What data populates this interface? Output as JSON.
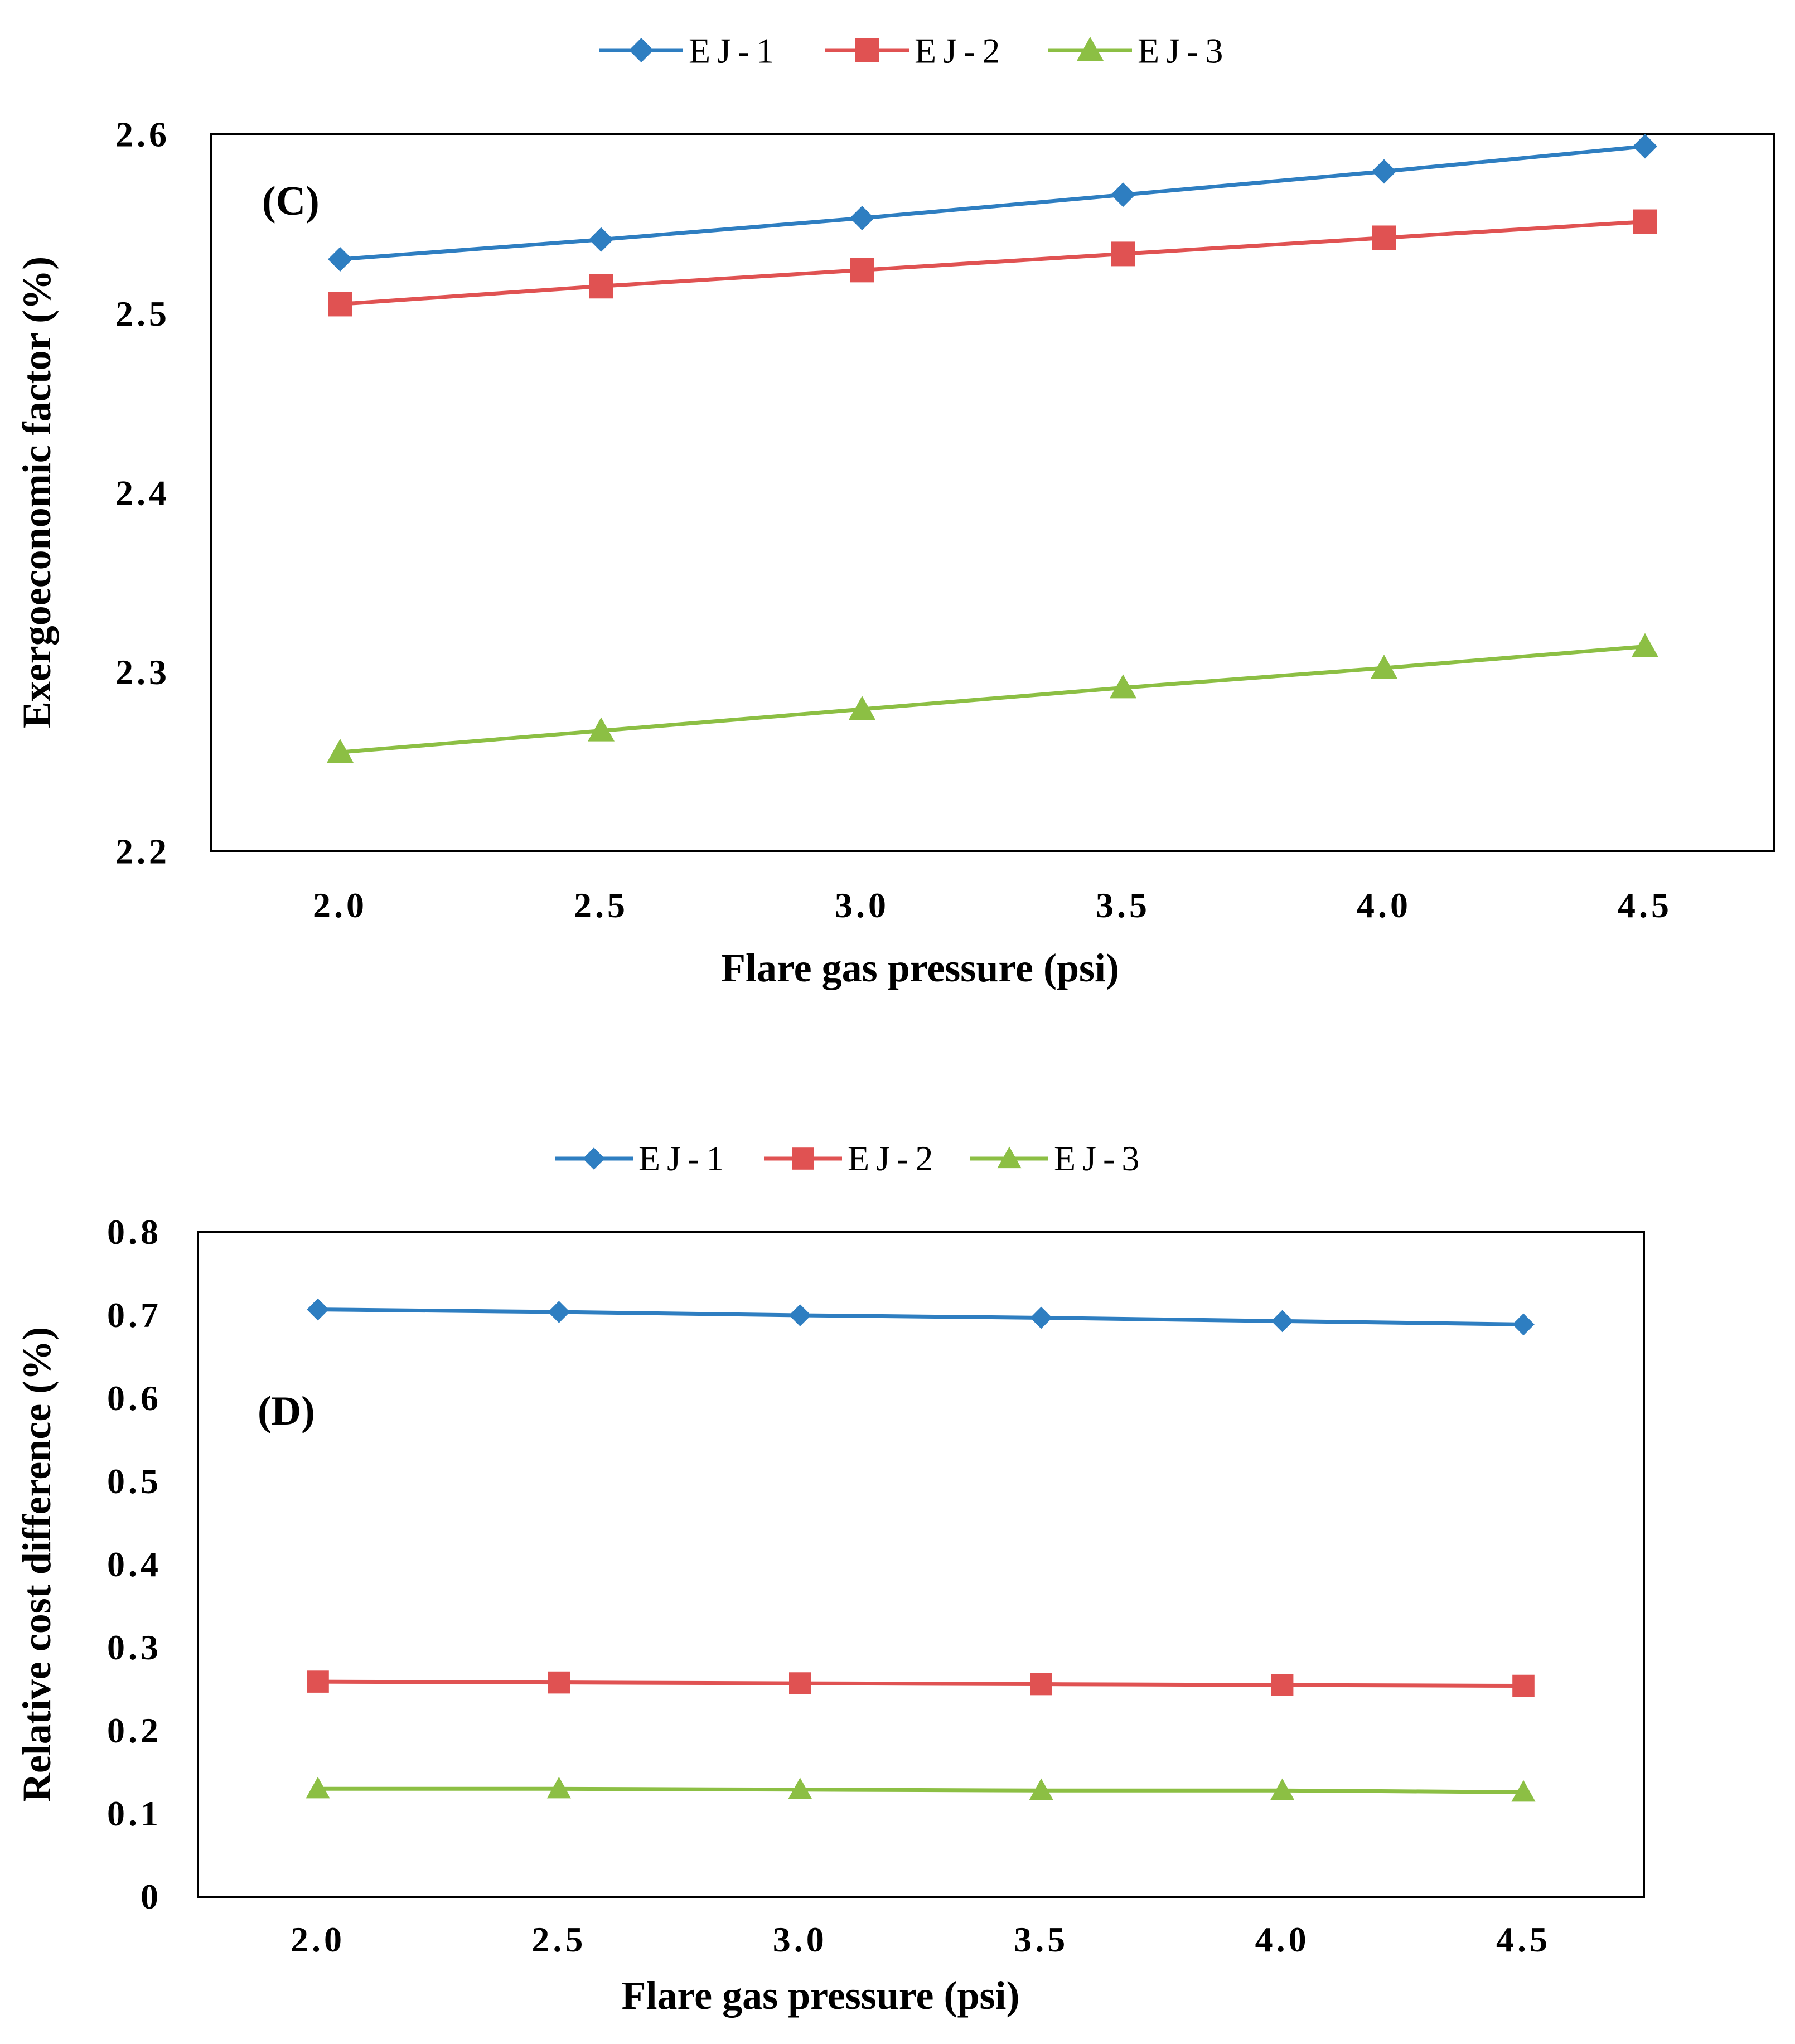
{
  "chart_data": [
    {
      "type": "line",
      "panel_label": "(C)",
      "xlabel": "Flare gas pressure (psi)",
      "ylabel": "Exergoeconomic factor (%)",
      "x": [
        2.0,
        2.5,
        3.0,
        3.5,
        4.0,
        4.5
      ],
      "x_tick_labels": [
        "2.0",
        "2.5",
        "3.0",
        "3.5",
        "4.0",
        "4.5"
      ],
      "ylim": [
        2.2,
        2.6
      ],
      "y_ticks": [
        2.2,
        2.3,
        2.4,
        2.5,
        2.6
      ],
      "y_tick_labels": [
        "2.2",
        "2.3",
        "2.4",
        "2.5",
        "2.6"
      ],
      "legend_position": "top-center",
      "grid": false,
      "series": [
        {
          "name": "EJ-1",
          "color": "#2e7ec1",
          "marker": "diamond",
          "values": [
            2.53,
            2.541,
            2.553,
            2.566,
            2.579,
            2.593
          ]
        },
        {
          "name": "EJ-2",
          "color": "#e05252",
          "marker": "square",
          "values": [
            2.505,
            2.515,
            2.524,
            2.533,
            2.542,
            2.551
          ]
        },
        {
          "name": "EJ-3",
          "color": "#8cbf44",
          "marker": "triangle",
          "values": [
            2.255,
            2.267,
            2.279,
            2.291,
            2.302,
            2.314
          ]
        }
      ]
    },
    {
      "type": "line",
      "panel_label": "(D)",
      "xlabel": "Flare gas pressure (psi)",
      "ylabel": "Relative cost difference (%)",
      "x": [
        2.0,
        2.5,
        3.0,
        3.5,
        4.0,
        4.5
      ],
      "x_tick_labels": [
        "2.0",
        "2.5",
        "3.0",
        "3.5",
        "4.0",
        "4.5"
      ],
      "ylim": [
        0,
        0.8
      ],
      "y_ticks": [
        0,
        0.1,
        0.2,
        0.3,
        0.4,
        0.5,
        0.6,
        0.7,
        0.8
      ],
      "y_tick_labels": [
        "0",
        "0.1",
        "0.2",
        "0.3",
        "0.4",
        "0.5",
        "0.6",
        "0.7",
        "0.8"
      ],
      "legend_position": "top-center",
      "grid": false,
      "series": [
        {
          "name": "EJ-1",
          "color": "#2e7ec1",
          "marker": "diamond",
          "values": [
            0.707,
            0.704,
            0.7,
            0.697,
            0.693,
            0.689
          ]
        },
        {
          "name": "EJ-2",
          "color": "#e05252",
          "marker": "square",
          "values": [
            0.259,
            0.258,
            0.257,
            0.256,
            0.255,
            0.254
          ]
        },
        {
          "name": "EJ-3",
          "color": "#8cbf44",
          "marker": "triangle",
          "values": [
            0.13,
            0.13,
            0.129,
            0.128,
            0.128,
            0.126
          ]
        }
      ]
    }
  ]
}
